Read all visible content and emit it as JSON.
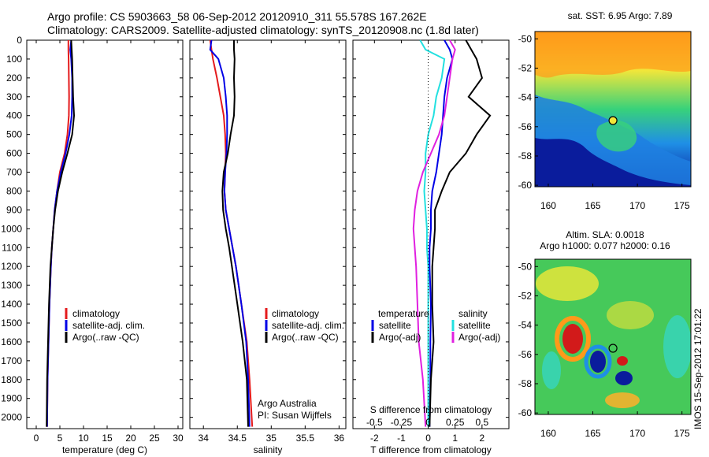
{
  "title": {
    "line1": "Argo profile: CS 5903663_58 06-Sep-2012 20120910_311 55.578S 167.262E",
    "line2": "Climatology: CARS2009. Satellite-adjusted climatology: synTS_20120908.nc (1.8d later)"
  },
  "side_label": "IMOS 15-Sep-2012 17:01:22",
  "credit": {
    "line1": "Argo Australia",
    "line2": "PI: Susan Wijffels"
  },
  "colors": {
    "climatology": "#e41a1c",
    "satellite": "#0000e6",
    "argo": "#000000",
    "s_satellite": "#22e0e0",
    "s_argo": "#e020e0",
    "ref_line": "#000000"
  },
  "chart_data": [
    {
      "type": "line",
      "xlabel": "temperature (deg C)",
      "ylabel": "",
      "xlim": [
        -2,
        31
      ],
      "ylim": [
        2060,
        0
      ],
      "xticks": [
        0,
        5,
        10,
        15,
        20,
        25,
        30
      ],
      "yticks": [
        0,
        100,
        200,
        300,
        400,
        500,
        600,
        700,
        800,
        900,
        1000,
        1100,
        1200,
        1300,
        1400,
        1500,
        1600,
        1700,
        1800,
        1900,
        2000
      ],
      "legend": [
        "climatology",
        "satellite-adj. clim.",
        "Argo(..raw -QC)"
      ],
      "legend_position": "middle-center",
      "series": [
        {
          "name": "climatology",
          "color": "#e41a1c",
          "x": [
            6.8,
            6.8,
            6.85,
            6.9,
            6.95,
            6.9,
            6.6,
            6.0,
            5.0,
            4.4,
            3.9,
            3.6,
            3.3,
            3.1,
            2.8,
            2.6,
            2.4,
            2.3
          ],
          "y": [
            0,
            50,
            100,
            200,
            300,
            400,
            500,
            600,
            700,
            800,
            900,
            1000,
            1100,
            1200,
            1400,
            1600,
            1800,
            2050
          ]
        },
        {
          "name": "satellite-adj. clim.",
          "color": "#0000e6",
          "x": [
            7.4,
            7.2,
            7.4,
            7.6,
            7.6,
            7.5,
            7.0,
            6.2,
            5.2,
            4.4,
            3.9,
            3.6,
            3.3,
            3.1,
            2.8,
            2.6,
            2.4,
            2.3
          ],
          "y": [
            0,
            50,
            100,
            200,
            300,
            400,
            500,
            600,
            700,
            800,
            900,
            1000,
            1100,
            1200,
            1400,
            1600,
            1800,
            2050
          ]
        },
        {
          "name": "Argo(..raw -QC)",
          "color": "#000000",
          "x": [
            7.4,
            7.5,
            7.6,
            7.7,
            7.8,
            8.0,
            7.6,
            6.6,
            5.5,
            4.6,
            4.0,
            3.6,
            3.3,
            3.0,
            2.7,
            2.5,
            2.3,
            2.2
          ],
          "y": [
            0,
            50,
            100,
            200,
            300,
            400,
            500,
            600,
            700,
            800,
            900,
            1000,
            1100,
            1200,
            1400,
            1600,
            1800,
            2050
          ]
        }
      ]
    },
    {
      "type": "line",
      "xlabel": "salinity",
      "ylabel": "",
      "xlim": [
        33.8,
        36.1
      ],
      "ylim": [
        2060,
        0
      ],
      "xticks": [
        34,
        34.5,
        35,
        35.5,
        36
      ],
      "legend": [
        "climatology",
        "satellite-adj. clim.",
        "Argo(..raw -QC)"
      ],
      "legend_position": "middle-right",
      "series": [
        {
          "name": "climatology",
          "color": "#e41a1c",
          "x": [
            34.1,
            34.12,
            34.14,
            34.2,
            34.25,
            34.3,
            34.32,
            34.33,
            34.32,
            34.31,
            34.33,
            34.38,
            34.43,
            34.48,
            34.56,
            34.64,
            34.68,
            34.72
          ],
          "y": [
            0,
            50,
            100,
            200,
            300,
            400,
            500,
            600,
            700,
            800,
            900,
            1000,
            1100,
            1200,
            1400,
            1600,
            1800,
            2050
          ]
        },
        {
          "name": "satellite-adj. clim.",
          "color": "#0000e6",
          "x": [
            34.12,
            34.1,
            34.22,
            34.3,
            34.33,
            34.35,
            34.35,
            34.34,
            34.32,
            34.31,
            34.33,
            34.38,
            34.43,
            34.48,
            34.56,
            34.63,
            34.66,
            34.68
          ],
          "y": [
            0,
            50,
            100,
            200,
            300,
            400,
            500,
            600,
            700,
            800,
            900,
            1000,
            1100,
            1200,
            1400,
            1600,
            1800,
            2050
          ]
        },
        {
          "name": "Argo(..raw -QC)",
          "color": "#000000",
          "x": [
            34.45,
            34.45,
            34.46,
            34.45,
            34.46,
            34.45,
            34.4,
            34.36,
            34.3,
            34.28,
            34.29,
            34.33,
            34.38,
            34.42,
            34.5,
            34.58,
            34.64,
            34.66
          ],
          "y": [
            0,
            50,
            100,
            200,
            300,
            400,
            500,
            600,
            700,
            800,
            900,
            1000,
            1100,
            1200,
            1400,
            1600,
            1800,
            2050
          ]
        }
      ]
    },
    {
      "type": "line",
      "xlabel": "T difference from climatology",
      "xlabel_top": "S difference from climatology",
      "xlim": [
        -2.8,
        3.0
      ],
      "ylim": [
        2060,
        0
      ],
      "xticks": [
        -2,
        -1,
        0,
        1,
        2
      ],
      "xticks_top": [
        "-0.5",
        "-0.25",
        "0",
        "0.25",
        "0.5"
      ],
      "legend_groups": [
        {
          "title": "temperature",
          "entries": [
            "satellite",
            "Argo(-adj)"
          ]
        },
        {
          "title": "salinity",
          "entries": [
            "satellite",
            "Argo(-adj)"
          ]
        }
      ],
      "legend_position": "lower-center",
      "series": [
        {
          "name": "T satellite",
          "color": "#0000e6",
          "x": [
            0.6,
            0.8,
            0.9,
            0.7,
            0.6,
            0.55,
            0.5,
            0.4,
            0.3,
            0.15,
            0.1,
            0.1,
            0.05,
            0.05,
            0.1,
            0.08,
            0.08,
            0.05
          ],
          "y": [
            0,
            50,
            100,
            200,
            300,
            400,
            500,
            600,
            700,
            800,
            900,
            1000,
            1100,
            1200,
            1400,
            1600,
            1800,
            2050
          ]
        },
        {
          "name": "T Argo(-adj)",
          "color": "#000000",
          "x": [
            1.4,
            1.6,
            1.8,
            2.0,
            1.5,
            2.3,
            1.8,
            1.4,
            0.8,
            0.5,
            0.25,
            0.25,
            0.2,
            0.15,
            0.15,
            0.2,
            0.1,
            0.05
          ],
          "y": [
            0,
            50,
            100,
            200,
            300,
            400,
            500,
            600,
            700,
            800,
            900,
            1000,
            1100,
            1200,
            1400,
            1600,
            1800,
            2050
          ]
        },
        {
          "name": "S satellite",
          "color": "#22e0e0",
          "x": [
            -0.3,
            -0.1,
            0.6,
            0.5,
            0.3,
            0.2,
            0.0,
            -0.1,
            -0.1,
            -0.15,
            -0.1,
            -0.05,
            -0.05,
            0.0,
            0.0,
            0.0,
            0.0,
            0.0
          ],
          "y": [
            0,
            50,
            100,
            200,
            300,
            400,
            500,
            600,
            700,
            800,
            900,
            1000,
            1100,
            1200,
            1400,
            1600,
            1800,
            2050
          ]
        },
        {
          "name": "S Argo(-adj)",
          "color": "#e020e0",
          "x": [
            0.8,
            1.0,
            0.9,
            0.8,
            0.7,
            0.6,
            0.4,
            0.1,
            -0.2,
            -0.4,
            -0.5,
            -0.55,
            -0.5,
            -0.45,
            -0.4,
            -0.35,
            -0.2,
            -0.1
          ],
          "y": [
            0,
            50,
            100,
            200,
            300,
            400,
            500,
            600,
            700,
            800,
            900,
            1000,
            1100,
            1200,
            1400,
            1600,
            1800,
            2050
          ]
        }
      ]
    },
    {
      "type": "heatmap",
      "title": "sat. SST: 6.95  Argo: 7.89",
      "xlim": [
        158.5,
        176
      ],
      "ylim": [
        -60.1,
        -49.5
      ],
      "xticks": [
        160,
        165,
        170,
        175
      ],
      "yticks": [
        -50,
        -52,
        -54,
        -56,
        -58,
        -60
      ],
      "marker": {
        "lon": 167.262,
        "lat": -55.578
      }
    },
    {
      "type": "heatmap",
      "title": "Altim. SLA: 0.0018",
      "subtitle": "Argo h1000: 0.077 h2000: 0.16",
      "xlim": [
        158.5,
        176
      ],
      "ylim": [
        -60.1,
        -49.5
      ],
      "xticks": [
        160,
        165,
        170,
        175
      ],
      "yticks": [
        -50,
        -52,
        -54,
        -56,
        -58,
        -60
      ],
      "marker": {
        "lon": 167.262,
        "lat": -55.578
      }
    }
  ]
}
